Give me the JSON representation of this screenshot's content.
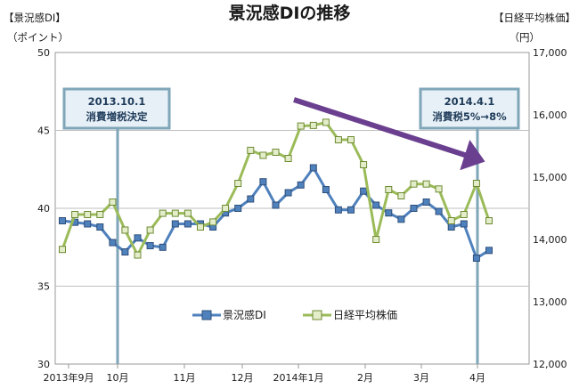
{
  "chart_data": {
    "type": "line",
    "title": "景況感DIの推移",
    "y_left": {
      "label": "【景況感DI】",
      "unit": "（ポイント）",
      "range": [
        30,
        50
      ],
      "ticks": [
        "30",
        "35",
        "40",
        "45",
        "50"
      ]
    },
    "y_right": {
      "label": "【日経平均株価】",
      "unit": "（円）",
      "range": [
        12000,
        17000
      ],
      "ticks": [
        "12,000",
        "13,000",
        "14,000",
        "15,000",
        "16,000",
        "17,000"
      ]
    },
    "x_ticks": [
      "2013年9月",
      "10月",
      "11月",
      "12月",
      "2014年1月",
      "2月",
      "3月",
      "4月"
    ],
    "grid": "horizontal",
    "legend_position": "center-bottom",
    "series": [
      {
        "name": "景況感DI",
        "axis": "left",
        "color": "#4f81bd",
        "values": [
          39.2,
          39.1,
          39.0,
          38.8,
          37.8,
          37.2,
          38.1,
          37.6,
          37.5,
          39.0,
          39.0,
          39.0,
          38.8,
          39.7,
          40.0,
          40.6,
          41.7,
          40.2,
          41.0,
          41.5,
          42.6,
          41.2,
          39.9,
          39.9,
          41.1,
          40.2,
          39.7,
          39.3,
          40.0,
          40.4,
          39.8,
          38.8,
          39.0,
          36.8,
          37.3
        ]
      },
      {
        "name": "日経平均株価",
        "axis": "right",
        "color": "#9bbb59",
        "values": [
          13840,
          14400,
          14400,
          14400,
          14600,
          14150,
          13750,
          14150,
          14420,
          14420,
          14420,
          14200,
          14280,
          14500,
          14900,
          15430,
          15350,
          15400,
          15300,
          15820,
          15830,
          15880,
          15600,
          15600,
          15200,
          14000,
          14800,
          14700,
          14890,
          14890,
          14810,
          14300,
          14400,
          14900,
          14300
        ]
      }
    ],
    "annotations": [
      {
        "text_line1": "2013.10.1",
        "text_line2": "消費増税決定"
      },
      {
        "text_line1": "2014.4.1",
        "text_line2": "消費税5%→8%"
      }
    ]
  }
}
